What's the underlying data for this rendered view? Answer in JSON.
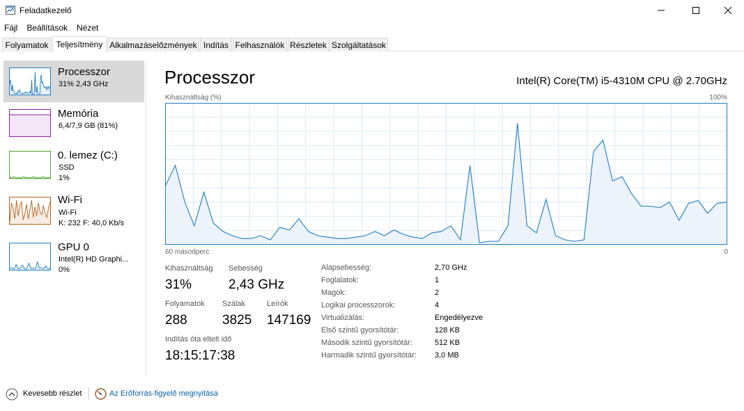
{
  "window": {
    "title": "Feladatkezelő"
  },
  "menu": [
    "Fájl",
    "Beállítások",
    "Nézet"
  ],
  "tabs": [
    "Folyamatok",
    "Teljesítmény",
    "Alkalmazáselőzmények",
    "Indítás",
    "Felhasználók",
    "Részletek",
    "Szolgáltatások"
  ],
  "active_tab": "Teljesítmény",
  "sidebar": {
    "items": [
      {
        "name": "Processzor",
        "line1": "31% 2,43 GHz",
        "line2": "",
        "color": "#1f7cc0",
        "fill": "#e6f0f8"
      },
      {
        "name": "Memória",
        "line1": "6,4/7,9 GB (81%)",
        "line2": "",
        "color": "#8b1fa3",
        "fill": "#f3e6f6"
      },
      {
        "name": "0. lemez (C:)",
        "line1": "SSD",
        "line2": "1%",
        "color": "#4ea72a",
        "fill": "#edf6e9"
      },
      {
        "name": "Wi-Fi",
        "line1": "Wi-Fi",
        "line2": "K: 232  F: 40,0 Kb/s",
        "color": "#b2621a",
        "fill": "#f6ece3"
      },
      {
        "name": "GPU 0",
        "line1": "Intel(R) HD Graphi...",
        "line2": "0%",
        "color": "#1f7cc0",
        "fill": "#e6f0f8"
      }
    ]
  },
  "main": {
    "title": "Processzor",
    "model": "Intel(R) Core(TM) i5-4310M CPU @ 2.70GHz",
    "graph_label": "Kihasználtság (%)",
    "graph_max": "100%",
    "graph_xleft": "60 másodperc",
    "graph_xright": "0",
    "stats": {
      "util_label": "Kihasználtság",
      "util_value": "31%",
      "speed_label": "Sebesség",
      "speed_value": "2,43 GHz",
      "proc_label": "Folyamatok",
      "proc_value": "288",
      "threads_label": "Szálak",
      "threads_value": "3825",
      "handles_label": "Leírók",
      "handles_value": "147169",
      "uptime_label": "Indítás óta eltelt idő",
      "uptime_value": "18:15:17:38"
    },
    "details": [
      {
        "label": "Alapsebesség:",
        "value": "2,70 GHz"
      },
      {
        "label": "Foglalatok:",
        "value": "1"
      },
      {
        "label": "Magok:",
        "value": "2"
      },
      {
        "label": "Logikai processzorok:",
        "value": "4"
      },
      {
        "label": "Virtualizálás:",
        "value": "Engedélyezve"
      },
      {
        "label": "Első szintű gyorsítótár:",
        "value": "128 KB"
      },
      {
        "label": "Második szintű gyorsítótár:",
        "value": "512 KB"
      },
      {
        "label": "Harmadik szintű gyorsítótár:",
        "value": "3,0 MB"
      }
    ]
  },
  "footer": {
    "less_label": "Kevesebb részlet",
    "monitor_label": "Az Erőforrás-figyelő megnyitása"
  },
  "chart_data": {
    "type": "area",
    "ylim": [
      0,
      100
    ],
    "color": "#1f7cc0",
    "values": [
      42,
      56,
      30,
      13,
      37,
      15,
      9,
      6,
      4,
      4,
      6,
      3,
      12,
      10,
      18,
      9,
      6,
      5,
      4,
      4,
      5,
      6,
      9,
      6,
      10,
      7,
      5,
      4,
      8,
      9,
      13,
      3,
      56,
      1,
      2,
      2,
      13,
      86,
      13,
      8,
      32,
      6,
      3,
      2,
      3,
      66,
      74,
      45,
      48,
      36,
      27,
      27,
      26,
      30,
      17,
      29,
      31,
      22,
      29,
      30
    ]
  }
}
